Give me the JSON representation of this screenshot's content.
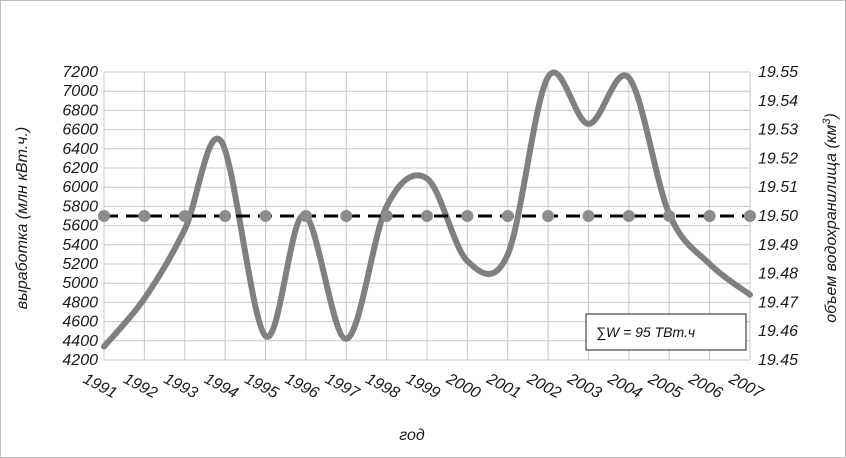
{
  "chart_data": {
    "type": "line",
    "title": "",
    "xlabel": "год",
    "ylabel_left": "выработка (млн кВт.ч.)",
    "ylabel_right_prefix": "объем водохранилища (км",
    "ylabel_right_sup": "3",
    "ylabel_right_suffix": ")",
    "categories": [
      "1991",
      "1992",
      "1993",
      "1994",
      "1995",
      "1996",
      "1997",
      "1998",
      "1999",
      "2000",
      "2001",
      "2002",
      "2003",
      "2004",
      "2005",
      "2006",
      "2007"
    ],
    "left_axis": {
      "ylim": [
        4200,
        7200
      ],
      "ticks": [
        "4200",
        "4400",
        "4600",
        "4800",
        "5000",
        "5200",
        "5400",
        "5600",
        "5800",
        "6000",
        "6200",
        "6400",
        "6600",
        "6800",
        "7000",
        "7200"
      ]
    },
    "right_axis": {
      "ylim": [
        19.45,
        19.55
      ],
      "ticks": [
        "19.45",
        "19.46",
        "19.47",
        "19.48",
        "19.49",
        "19.50",
        "19.51",
        "19.52",
        "19.53",
        "19.54",
        "19.55"
      ]
    },
    "series": [
      {
        "axis": "left",
        "style": "smooth-solid",
        "color": "#808080",
        "points": [
          {
            "x": 0.0,
            "y": 4340
          },
          {
            "x": 1.0,
            "y": 4840
          },
          {
            "x": 2.0,
            "y": 5560
          },
          {
            "x": 2.9,
            "y": 6480
          },
          {
            "x": 4.0,
            "y": 4450
          },
          {
            "x": 4.95,
            "y": 5710
          },
          {
            "x": 6.0,
            "y": 4420
          },
          {
            "x": 7.0,
            "y": 5800
          },
          {
            "x": 8.0,
            "y": 6090
          },
          {
            "x": 9.0,
            "y": 5230
          },
          {
            "x": 10.0,
            "y": 5300
          },
          {
            "x": 11.0,
            "y": 7150
          },
          {
            "x": 12.0,
            "y": 6660
          },
          {
            "x": 13.0,
            "y": 7140
          },
          {
            "x": 14.0,
            "y": 5720
          },
          {
            "x": 15.0,
            "y": 5200
          },
          {
            "x": 16.0,
            "y": 4880
          }
        ]
      },
      {
        "axis": "right",
        "style": "dashed-with-markers",
        "color": "#000000",
        "marker_color": "#8c8c8c",
        "values": [
          19.5,
          19.5,
          19.5,
          19.5,
          19.5,
          19.5,
          19.5,
          19.5,
          19.5,
          19.5,
          19.5,
          19.5,
          19.5,
          19.5,
          19.5,
          19.5,
          19.5
        ]
      }
    ],
    "annotation": "∑W = 95 ТВт.ч",
    "grid": true
  }
}
